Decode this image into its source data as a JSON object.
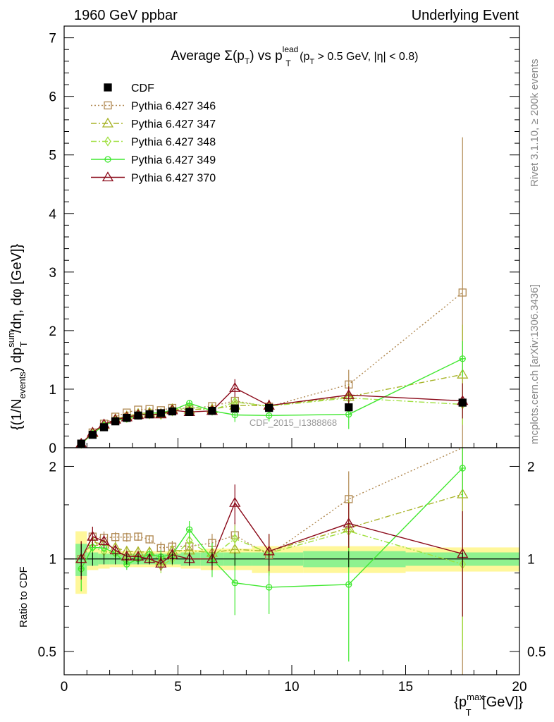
{
  "header": {
    "left": "1960 GeV ppbar",
    "right": "Underlying Event",
    "title_main": "Average Σ(p",
    "title_sub1": "T",
    "title_mid": ") vs p",
    "title_sup": "lead",
    "title_sub2": "T",
    "title_tail": " (p",
    "title_sub3": "T",
    "title_end": " > 0.5 GeV, |η| < 0.8)"
  },
  "side": {
    "rivet": "Rivet 3.1.10, ≥ 200k events",
    "mcplots": "mcplots.cern.ch [arXiv:1306.3436]"
  },
  "watermark": "CDF_2015_I1388868",
  "axes": {
    "ylabel_main": "{(1/N",
    "ylabel_events": "events",
    "ylabel_rest": ") dp",
    "ylabel_sum": "sum",
    "ylabel_T": "T",
    "ylabel_tail": "/dη, dφ [GeV]}",
    "ylabel_ratio": "Ratio to CDF",
    "xlabel_main": "{p",
    "xlabel_sup": "max",
    "xlabel_sub": "T",
    "xlabel_tail": " [GeV]}"
  },
  "colors": {
    "cdf": "#000000",
    "p346": "#b08850",
    "p347": "#a8b428",
    "p348": "#a0e040",
    "p349": "#40e830",
    "p370": "#8b0a1a",
    "band_outer": "#fff79a",
    "band_inner": "#8ff28f"
  },
  "chart_data": {
    "type": "line",
    "x": [
      0.75,
      1.25,
      1.75,
      2.25,
      2.75,
      3.25,
      3.75,
      4.25,
      4.75,
      5.5,
      6.5,
      7.5,
      9.0,
      12.5,
      17.5
    ],
    "xlim": [
      0,
      20
    ],
    "ylim_main": [
      0,
      7.2
    ],
    "ylim_ratio": [
      0.42,
      2.3
    ],
    "yscale_ratio": "log",
    "xticks": [
      0,
      5,
      10,
      15,
      20
    ],
    "yticks_main": [
      0,
      1,
      2,
      3,
      4,
      5,
      6,
      7
    ],
    "yticks_ratio": [
      0.5,
      1,
      2
    ],
    "legend_placement": "top-left",
    "band_outer": [
      0.23,
      0.08,
      0.07,
      0.06,
      0.06,
      0.06,
      0.06,
      0.06,
      0.06,
      0.07,
      0.08,
      0.08,
      0.1,
      0.1,
      0.09
    ],
    "band_inner": [
      0.12,
      0.05,
      0.04,
      0.04,
      0.04,
      0.04,
      0.04,
      0.04,
      0.04,
      0.05,
      0.05,
      0.05,
      0.05,
      0.06,
      0.05
    ],
    "series": [
      {
        "name": "CDF",
        "key": "cdf",
        "style": "data",
        "values": [
          0.07,
          0.22,
          0.35,
          0.45,
          0.51,
          0.55,
          0.57,
          0.59,
          0.62,
          0.61,
          0.63,
          0.67,
          0.68,
          0.69,
          0.77
        ],
        "err": [
          0.01,
          0.02,
          0.02,
          0.02,
          0.02,
          0.02,
          0.02,
          0.02,
          0.02,
          0.02,
          0.03,
          0.03,
          0.04,
          0.05,
          0.05
        ]
      },
      {
        "name": "Pythia 6.427 346",
        "key": "p346",
        "style": "dotted",
        "marker": "square",
        "values": [
          0.07,
          0.26,
          0.41,
          0.53,
          0.6,
          0.65,
          0.66,
          0.64,
          0.68,
          0.67,
          0.71,
          0.8,
          0.7,
          1.08,
          2.65
        ],
        "err": [
          0.01,
          0.02,
          0.02,
          0.02,
          0.02,
          0.02,
          0.02,
          0.03,
          0.03,
          0.03,
          0.05,
          0.08,
          0.1,
          0.25,
          2.65
        ]
      },
      {
        "name": "Pythia 6.427 347",
        "key": "p347",
        "style": "dashdot",
        "marker": "triangle",
        "values": [
          0.07,
          0.25,
          0.39,
          0.49,
          0.54,
          0.58,
          0.6,
          0.58,
          0.66,
          0.65,
          0.66,
          0.72,
          0.72,
          0.87,
          1.25
        ],
        "err": [
          0.01,
          0.02,
          0.02,
          0.02,
          0.02,
          0.02,
          0.02,
          0.03,
          0.03,
          0.03,
          0.05,
          0.08,
          0.1,
          0.2,
          0.85
        ]
      },
      {
        "name": "Pythia 6.427 348",
        "key": "p348",
        "style": "dashdot",
        "marker": "diamond",
        "values": [
          0.065,
          0.24,
          0.37,
          0.47,
          0.51,
          0.56,
          0.57,
          0.56,
          0.62,
          0.7,
          0.64,
          0.78,
          0.71,
          0.85,
          0.74
        ],
        "err": [
          0.01,
          0.02,
          0.02,
          0.02,
          0.02,
          0.02,
          0.02,
          0.03,
          0.03,
          0.04,
          0.05,
          0.08,
          0.1,
          0.18,
          0.35
        ]
      },
      {
        "name": "Pythia 6.427 349",
        "key": "p349",
        "style": "solid",
        "marker": "circle",
        "values": [
          0.065,
          0.24,
          0.38,
          0.47,
          0.49,
          0.55,
          0.59,
          0.6,
          0.64,
          0.76,
          0.63,
          0.56,
          0.55,
          0.57,
          1.52
        ],
        "err": [
          0.01,
          0.02,
          0.02,
          0.02,
          0.02,
          0.02,
          0.02,
          0.03,
          0.03,
          0.05,
          0.08,
          0.12,
          0.1,
          0.25,
          0.3
        ]
      },
      {
        "name": "Pythia 6.427 370",
        "key": "p370",
        "style": "solid",
        "marker": "triangle",
        "values": [
          0.07,
          0.26,
          0.4,
          0.48,
          0.52,
          0.56,
          0.57,
          0.57,
          0.64,
          0.61,
          0.63,
          1.02,
          0.72,
          0.9,
          0.8
        ],
        "err": [
          0.01,
          0.02,
          0.02,
          0.02,
          0.02,
          0.02,
          0.02,
          0.03,
          0.03,
          0.03,
          0.05,
          0.15,
          0.1,
          0.15,
          0.3
        ]
      }
    ]
  }
}
